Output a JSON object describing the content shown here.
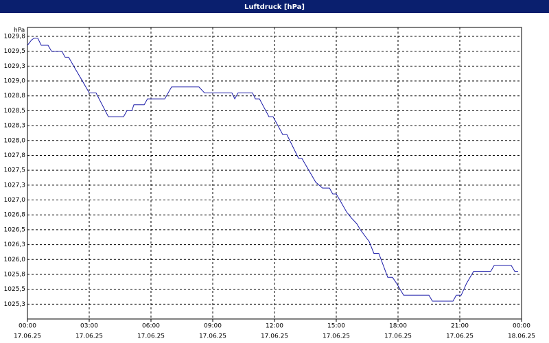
{
  "chart_data": {
    "type": "line",
    "title": "Luftdruck [hPa]",
    "y_label": "hPa",
    "x": [
      0,
      0.2,
      0.33,
      0.5,
      0.67,
      1.0,
      1.17,
      1.67,
      1.83,
      2.0,
      2.33,
      2.67,
      3.0,
      3.33,
      3.93,
      4.67,
      4.83,
      5.07,
      5.17,
      5.67,
      5.83,
      6.67,
      7.0,
      8.33,
      8.6,
      9.93,
      10.07,
      10.23,
      10.93,
      11.07,
      11.27,
      11.73,
      11.93,
      12.4,
      12.6,
      13.17,
      13.33,
      14.0,
      14.33,
      14.67,
      14.83,
      15.0,
      15.17,
      15.5,
      15.73,
      16.0,
      16.17,
      16.6,
      16.83,
      17.07,
      17.5,
      17.73,
      17.93,
      18.27,
      19.5,
      19.67,
      20.67,
      20.83,
      21.07,
      21.33,
      21.67,
      22.5,
      22.67,
      23.5,
      23.67,
      23.83
    ],
    "series": [
      {
        "name": "Luftdruck",
        "color": "#1a1aa8",
        "values": [
          1029.6,
          1029.69,
          1029.72,
          1029.72,
          1029.6,
          1029.6,
          1029.5,
          1029.5,
          1029.4,
          1029.4,
          1029.2,
          1029.0,
          1028.8,
          1028.8,
          1028.4,
          1028.4,
          1028.5,
          1028.5,
          1028.6,
          1028.6,
          1028.7,
          1028.7,
          1028.9,
          1028.9,
          1028.8,
          1028.8,
          1028.7,
          1028.8,
          1028.8,
          1028.7,
          1028.7,
          1028.4,
          1028.4,
          1028.1,
          1028.1,
          1027.7,
          1027.7,
          1027.3,
          1027.2,
          1027.2,
          1027.1,
          1027.1,
          1027.0,
          1026.8,
          1026.7,
          1026.6,
          1026.5,
          1026.3,
          1026.1,
          1026.1,
          1025.7,
          1025.7,
          1025.6,
          1025.4,
          1025.4,
          1025.3,
          1025.3,
          1025.4,
          1025.4,
          1025.6,
          1025.8,
          1025.8,
          1025.9,
          1025.9,
          1025.8,
          1025.8
        ]
      }
    ],
    "xlim": [
      0,
      24
    ],
    "xticks": [
      {
        "value": 0,
        "label": "00:00"
      },
      {
        "value": 3,
        "label": "03:00"
      },
      {
        "value": 6,
        "label": "06:00"
      },
      {
        "value": 9,
        "label": "09:00"
      },
      {
        "value": 12,
        "label": "12:00"
      },
      {
        "value": 15,
        "label": "15:00"
      },
      {
        "value": 18,
        "label": "18:00"
      },
      {
        "value": 21,
        "label": "21:00"
      },
      {
        "value": 24,
        "label": "00:00"
      }
    ],
    "xtick_dates": [
      "17.06.25",
      "17.06.25",
      "17.06.25",
      "17.06.25",
      "17.06.25",
      "17.06.25",
      "17.06.25",
      "17.06.25",
      "18.06.25"
    ],
    "ylim": [
      1025.0,
      1029.9
    ],
    "yticks": [
      {
        "value": 1025.25,
        "label": "1025,3"
      },
      {
        "value": 1025.5,
        "label": "1025,5"
      },
      {
        "value": 1025.75,
        "label": "1025,8"
      },
      {
        "value": 1026.0,
        "label": "1026,0"
      },
      {
        "value": 1026.25,
        "label": "1026,3"
      },
      {
        "value": 1026.5,
        "label": "1026,5"
      },
      {
        "value": 1026.75,
        "label": "1026,8"
      },
      {
        "value": 1027.0,
        "label": "1027,0"
      },
      {
        "value": 1027.25,
        "label": "1027,3"
      },
      {
        "value": 1027.5,
        "label": "1027,5"
      },
      {
        "value": 1027.75,
        "label": "1027,8"
      },
      {
        "value": 1028.0,
        "label": "1028,0"
      },
      {
        "value": 1028.25,
        "label": "1028,3"
      },
      {
        "value": 1028.5,
        "label": "1028,5"
      },
      {
        "value": 1028.75,
        "label": "1028,8"
      },
      {
        "value": 1029.0,
        "label": "1029,0"
      },
      {
        "value": 1029.25,
        "label": "1029,3"
      },
      {
        "value": 1029.5,
        "label": "1029,5"
      },
      {
        "value": 1029.75,
        "label": "1029,8"
      }
    ],
    "grid": true
  }
}
